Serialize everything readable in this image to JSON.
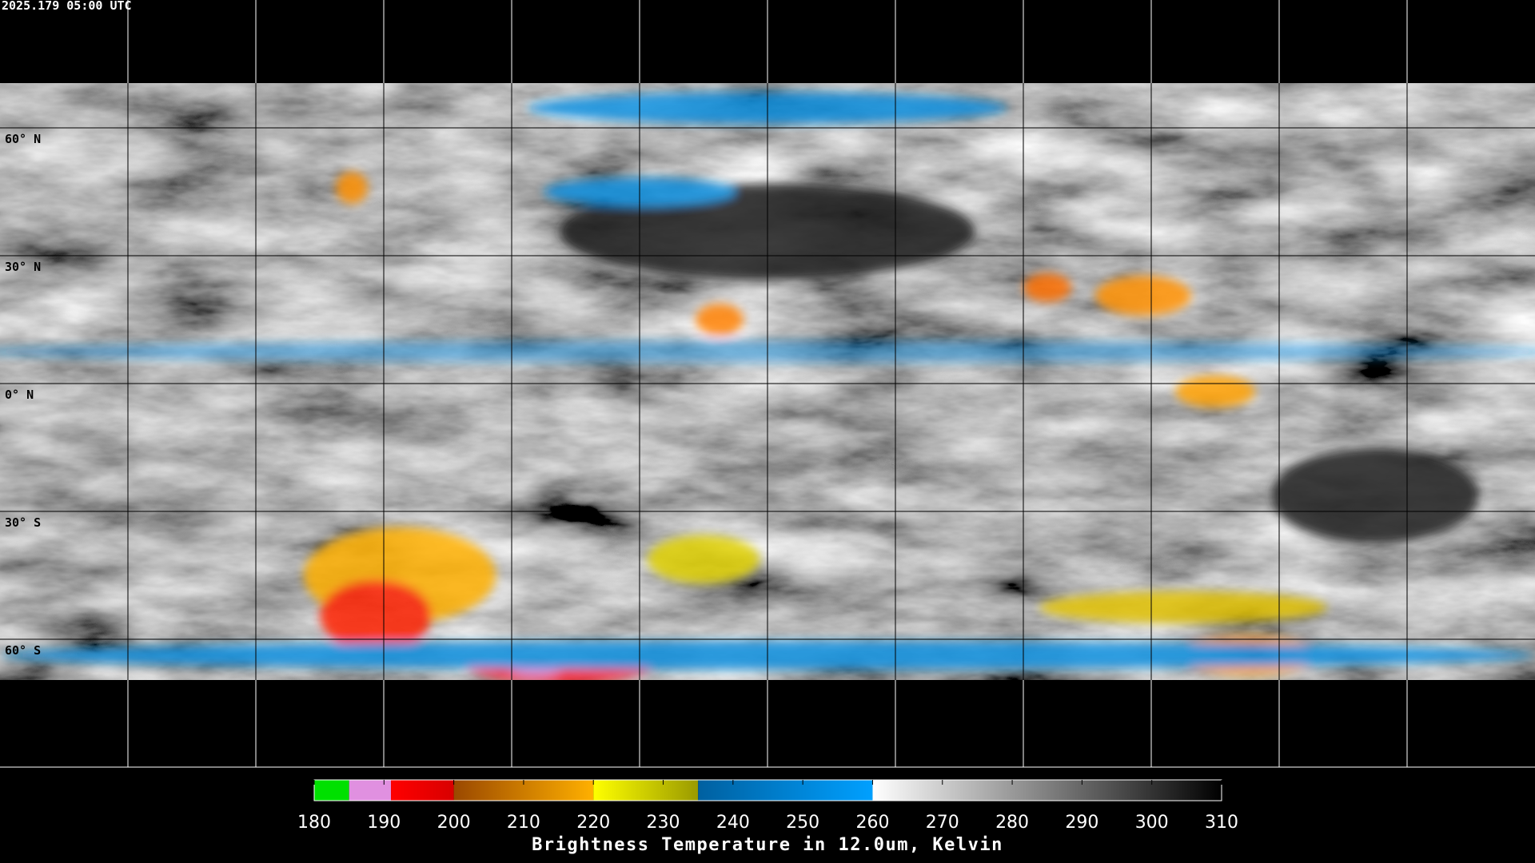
{
  "timestamp": "2025.179 05:00 UTC",
  "latitude_labels": [
    "60° N",
    "30° N",
    "0° N",
    "30° S",
    "60° S"
  ],
  "colorbar": {
    "range": [
      180,
      310
    ],
    "ticks": [
      180,
      190,
      200,
      210,
      220,
      230,
      240,
      250,
      260,
      270,
      280,
      290,
      300,
      310
    ],
    "segments": [
      {
        "from": 180,
        "to": 185,
        "colors": [
          "#00e000",
          "#00e000"
        ]
      },
      {
        "from": 185,
        "to": 191,
        "colors": [
          "#e090e0",
          "#e090e0"
        ]
      },
      {
        "from": 191,
        "to": 200,
        "colors": [
          "#ff0000",
          "#d80000"
        ]
      },
      {
        "from": 200,
        "to": 220,
        "colors": [
          "#9a4800",
          "#ffb000"
        ]
      },
      {
        "from": 220,
        "to": 235,
        "colors": [
          "#ffff00",
          "#9a9a00"
        ]
      },
      {
        "from": 235,
        "to": 260,
        "colors": [
          "#0060a0",
          "#00a0ff"
        ]
      },
      {
        "from": 260,
        "to": 310,
        "colors": [
          "#ffffff",
          "#000000"
        ]
      }
    ],
    "label": "Brightness Temperature in 12.0um, Kelvin"
  }
}
